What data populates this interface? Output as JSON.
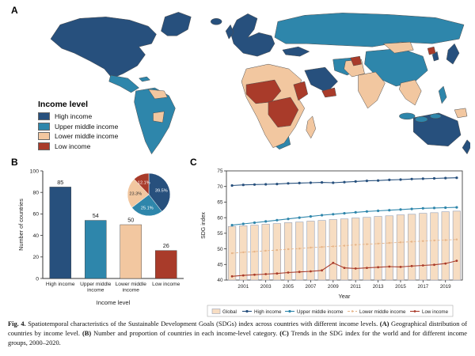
{
  "figure": {
    "panel_a": "A",
    "panel_b": "B",
    "panel_c": "C"
  },
  "colors": {
    "high_income": "#27507d",
    "upper_middle_income": "#2e86ab",
    "lower_middle_income": "#f2c7a0",
    "low_income": "#a93b2a",
    "global_bar": "#f7ddc2",
    "global_bar_stroke": "#96a0b4",
    "axis": "#333333"
  },
  "map_legend": {
    "title": "Income level",
    "items": [
      {
        "label": "High income",
        "color": "#27507d"
      },
      {
        "label": "Upper middle income",
        "color": "#2e86ab"
      },
      {
        "label": "Lower middle income",
        "color": "#f2c7a0"
      },
      {
        "label": "Low income",
        "color": "#a93b2a"
      }
    ]
  },
  "chart_data": [
    {
      "type": "map",
      "panel": "A",
      "title": "Geographical distribution of countries by income level",
      "categories": [
        "High income",
        "Upper middle income",
        "Lower middle income",
        "Low income"
      ]
    },
    {
      "type": "bar",
      "panel": "B",
      "categories": [
        "High income",
        "Upper middle\nincome",
        "Lower middle\nincome",
        "Low income"
      ],
      "values": [
        85,
        54,
        50,
        26
      ],
      "bar_colors": [
        "#27507d",
        "#2e86ab",
        "#f2c7a0",
        "#a93b2a"
      ],
      "ylabel": "Number of countries",
      "xlabel": "Income level",
      "ylim": [
        0,
        100
      ],
      "yticks": [
        0,
        20,
        40,
        60,
        80,
        100
      ]
    },
    {
      "type": "pie",
      "panel": "B",
      "labels": [
        "High income",
        "Upper middle income",
        "Lower middle income",
        "Low income"
      ],
      "values": [
        39.5,
        25.1,
        23.3,
        12.1
      ],
      "colors": [
        "#27507d",
        "#2e86ab",
        "#f2c7a0",
        "#a93b2a"
      ],
      "unit": "%"
    },
    {
      "type": "line",
      "panel": "C",
      "xlabel": "Year",
      "ylabel": "SDG index",
      "ylim": [
        40,
        75
      ],
      "yticks": [
        40,
        45,
        50,
        55,
        60,
        65,
        70,
        75
      ],
      "x": [
        2000,
        2001,
        2002,
        2003,
        2004,
        2005,
        2006,
        2007,
        2008,
        2009,
        2010,
        2011,
        2012,
        2013,
        2014,
        2015,
        2016,
        2017,
        2018,
        2019,
        2020
      ],
      "xticks": [
        2001,
        2003,
        2005,
        2007,
        2009,
        2011,
        2013,
        2015,
        2017,
        2019
      ],
      "legend_position": "bottom",
      "series": [
        {
          "name": "Global",
          "style": "bar",
          "values": [
            57.2,
            57.4,
            57.6,
            57.9,
            58.1,
            58.4,
            58.6,
            58.9,
            59.1,
            59.4,
            59.6,
            59.9,
            60.1,
            60.4,
            60.6,
            60.9,
            61.1,
            61.4,
            61.6,
            61.9,
            62.1
          ]
        },
        {
          "name": "High income",
          "color": "#27507d",
          "values": [
            70.3,
            70.5,
            70.6,
            70.7,
            70.8,
            71.0,
            71.1,
            71.2,
            71.3,
            71.2,
            71.4,
            71.6,
            71.8,
            71.9,
            72.1,
            72.2,
            72.4,
            72.5,
            72.6,
            72.7,
            72.8
          ]
        },
        {
          "name": "Upper middle income",
          "color": "#2e86ab",
          "values": [
            57.6,
            58.0,
            58.4,
            58.8,
            59.2,
            59.6,
            60.0,
            60.4,
            60.8,
            61.1,
            61.4,
            61.7,
            62.0,
            62.2,
            62.4,
            62.6,
            62.8,
            63.0,
            63.1,
            63.2,
            63.3
          ]
        },
        {
          "name": "Lower middle income",
          "color": "#e6b488",
          "dashed": true,
          "marker_r": 1.2,
          "values": [
            48.6,
            48.9,
            49.1,
            49.4,
            49.6,
            49.9,
            50.1,
            50.4,
            50.6,
            50.8,
            51.0,
            51.3,
            51.5,
            51.7,
            51.9,
            52.1,
            52.3,
            52.5,
            52.7,
            52.8,
            53.0
          ]
        },
        {
          "name": "Low income",
          "color": "#a93b2a",
          "marker_r": 1.4,
          "values": [
            41.2,
            41.5,
            41.7,
            41.9,
            42.1,
            42.4,
            42.6,
            42.8,
            43.1,
            45.5,
            43.9,
            43.7,
            43.9,
            44.1,
            44.3,
            44.2,
            44.5,
            44.7,
            44.9,
            45.3,
            46.2
          ]
        }
      ]
    }
  ],
  "caption": {
    "segments": [
      {
        "t": "Fig. 4.",
        "b": 1
      },
      {
        "t": " Spatiotemporal characteristics of the Sustainable Development Goals (SDGs) index across countries with different income levels. ",
        "b": 0
      },
      {
        "t": "(A)",
        "b": 1
      },
      {
        "t": " Geographical distribution of countries by income level. ",
        "b": 0
      },
      {
        "t": "(B)",
        "b": 1
      },
      {
        "t": " Number and proportion of countries in each income-level category. ",
        "b": 0
      },
      {
        "t": "(C)",
        "b": 1
      },
      {
        "t": " Trends in the SDG index for the world and for different income groups, 2000–2020.",
        "b": 0
      }
    ]
  }
}
